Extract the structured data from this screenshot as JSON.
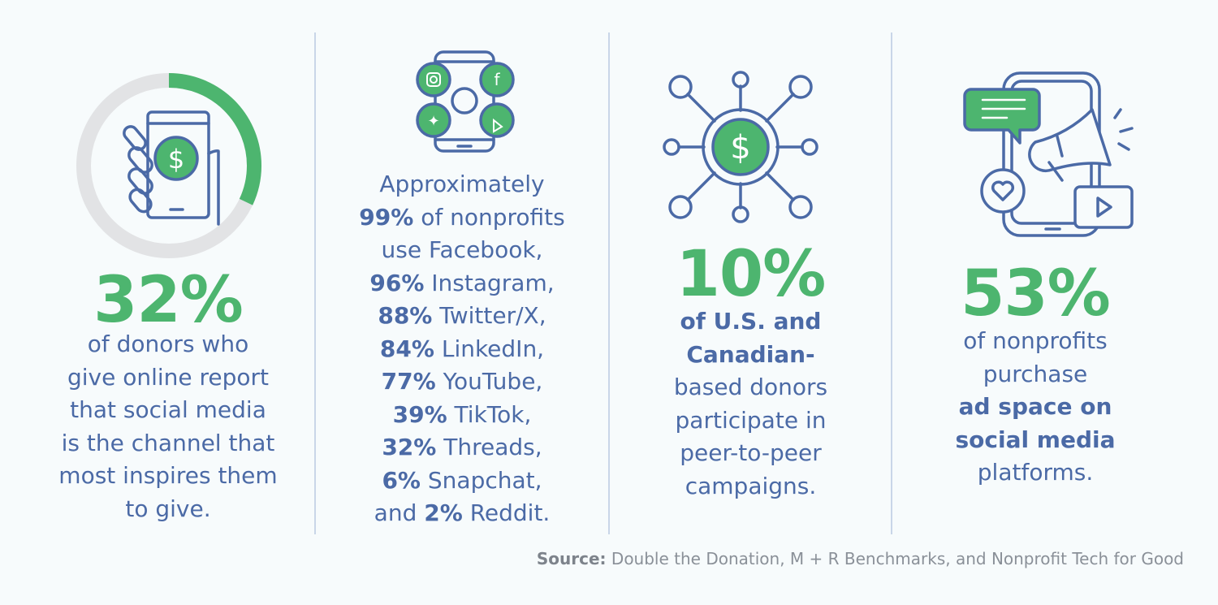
{
  "colors": {
    "accent": "#4db56f",
    "text": "#4b6aa6",
    "ring_track": "#e2e3e5",
    "background": "#f7fbfc"
  },
  "stat1": {
    "value": "32%",
    "progress_percent": 32,
    "icon": "hand-holding-phone-dollar-icon",
    "lines": [
      "of donors who",
      "give online report",
      "that social media",
      "is the channel that",
      "most inspires them",
      "to give."
    ]
  },
  "stat2": {
    "icon": "phone-social-media-icon",
    "lines": [
      [
        "",
        "Approximately",
        ""
      ],
      [
        "99%",
        " of nonprofits",
        ""
      ],
      [
        "",
        "use Facebook,",
        ""
      ],
      [
        "96%",
        " Instagram,",
        ""
      ],
      [
        "88%",
        " Twitter/X,",
        ""
      ],
      [
        "84%",
        " LinkedIn,",
        ""
      ],
      [
        "77%",
        " YouTube,",
        ""
      ],
      [
        "39%",
        " TikTok,",
        ""
      ],
      [
        "32%",
        " Threads,",
        ""
      ],
      [
        "6%",
        " Snapchat,",
        ""
      ]
    ],
    "last_line": {
      "pre": "and ",
      "bold": "2%",
      "post": " Reddit."
    }
  },
  "stat3": {
    "value": "10%",
    "icon": "dollar-network-icon",
    "bold_lines": [
      "of U.S. and",
      "Canadian-"
    ],
    "lines": [
      "based donors",
      "participate in",
      "peer-to-peer",
      "campaigns."
    ]
  },
  "stat4": {
    "value": "53%",
    "icon": "phone-megaphone-icon",
    "lines_top": [
      "of nonprofits",
      "purchase"
    ],
    "bold_lines": [
      "ad space on",
      "social media"
    ],
    "lines_bottom": [
      "platforms."
    ]
  },
  "source": {
    "label": "Source:",
    "text": " Double the Donation, M + R Benchmarks, and Nonprofit Tech for Good"
  }
}
